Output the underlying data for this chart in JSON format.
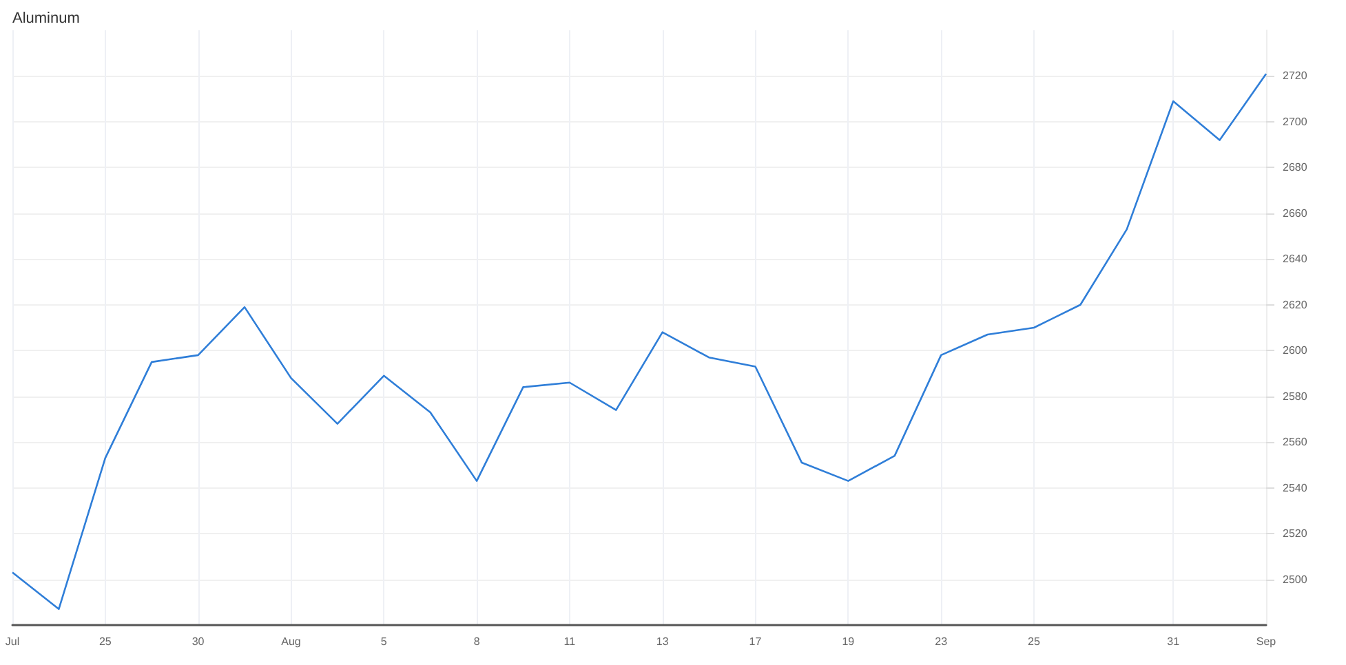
{
  "chart_data": {
    "type": "line",
    "title": "Aluminum",
    "categories": [
      "Jul",
      null,
      "25",
      null,
      "30",
      null,
      "Aug",
      null,
      "5",
      null,
      "8",
      null,
      "11",
      null,
      "13",
      null,
      "17",
      null,
      "19",
      null,
      "23",
      null,
      "25",
      null,
      null,
      "31",
      null,
      "Sep"
    ],
    "series": [
      {
        "color": "#2f7ed8",
        "values": [
          2503,
          2487,
          2553,
          2595,
          2598,
          2619,
          2588,
          2568,
          2589,
          2573,
          2543,
          2584,
          2586,
          2574,
          2608,
          2597,
          2593,
          2551,
          2543,
          2554,
          2598,
          2607,
          2610,
          2620,
          2653,
          2709,
          2692,
          2721
        ]
      }
    ],
    "ylim": [
      2480,
      2740
    ],
    "yticks": [
      2500,
      2520,
      2540,
      2560,
      2580,
      2600,
      2620,
      2640,
      2660,
      2680,
      2700,
      2720
    ],
    "grid": true,
    "marker": "none",
    "line_style": "solid"
  }
}
